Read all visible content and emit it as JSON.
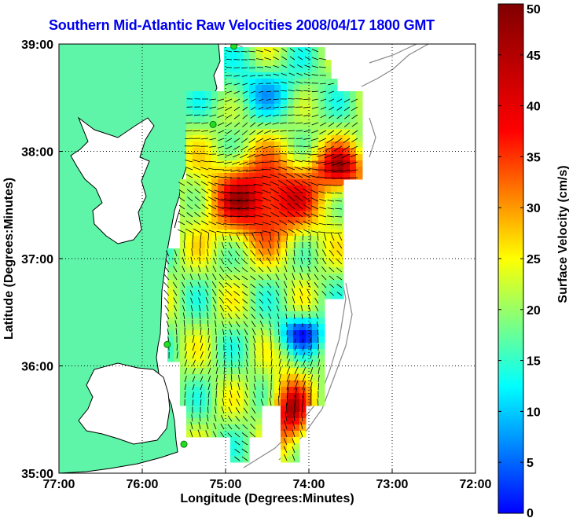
{
  "title": "Southern Mid-Atlantic Raw Velocities 2008/04/17 1800 GMT",
  "colors": {
    "land": "#5ff5a8",
    "water": "#ffffff",
    "coastline": "#000000",
    "isobath": "#888888",
    "grid": "#000000",
    "station": "#22dd22"
  },
  "map": {
    "xlabel": "Longitude (Degrees:Minutes)",
    "ylabel": "Latitude (Degrees:Minutes)",
    "xlim": [
      -77,
      -72
    ],
    "ylim": [
      35,
      39
    ],
    "x_ticks": [
      {
        "value": -77,
        "label": "77:00"
      },
      {
        "value": -76,
        "label": "76:00"
      },
      {
        "value": -75,
        "label": "75:00"
      },
      {
        "value": -74,
        "label": "74:00"
      },
      {
        "value": -73,
        "label": "73:00"
      },
      {
        "value": -72,
        "label": "72:00"
      }
    ],
    "y_ticks": [
      {
        "value": 35,
        "label": "35:00"
      },
      {
        "value": 36,
        "label": "36:00"
      },
      {
        "value": 37,
        "label": "37:00"
      },
      {
        "value": 38,
        "label": "38:00"
      },
      {
        "value": 39,
        "label": "39:00"
      }
    ],
    "grid": "dotted",
    "stations": [
      {
        "lon": -74.9,
        "lat": 38.98
      },
      {
        "lon": -75.15,
        "lat": 38.25
      },
      {
        "lon": -75.7,
        "lat": 36.2
      },
      {
        "lon": -75.5,
        "lat": 35.27
      }
    ]
  },
  "colorbar": {
    "label": "Surface Velocity (cm/s)",
    "min": 0,
    "max": 50,
    "ticks": [
      {
        "value": 0,
        "label": "0"
      },
      {
        "value": 5,
        "label": "5"
      },
      {
        "value": 10,
        "label": "10"
      },
      {
        "value": 15,
        "label": "15"
      },
      {
        "value": 20,
        "label": "20"
      },
      {
        "value": 25,
        "label": "25"
      },
      {
        "value": 30,
        "label": "30"
      },
      {
        "value": 35,
        "label": "35"
      },
      {
        "value": 40,
        "label": "40"
      },
      {
        "value": 45,
        "label": "45"
      },
      {
        "value": 50,
        "label": "50"
      }
    ],
    "colormap": "jet"
  }
}
